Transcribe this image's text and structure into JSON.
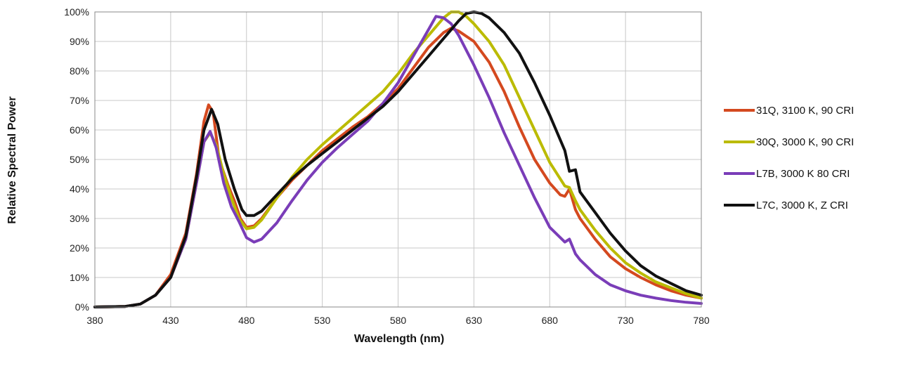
{
  "chart_data": {
    "type": "line",
    "title": "",
    "xlabel": "Wavelength (nm)",
    "ylabel": "Relative Spectral Power",
    "xlim": [
      380,
      780
    ],
    "ylim": [
      0,
      100
    ],
    "x_ticks": [
      "380",
      "430",
      "480",
      "530",
      "580",
      "630",
      "680",
      "730",
      "780"
    ],
    "y_ticks": [
      "0%",
      "10%",
      "20%",
      "30%",
      "40%",
      "50%",
      "60%",
      "70%",
      "80%",
      "90%",
      "100%"
    ],
    "grid": true,
    "legend_position": "right",
    "series": [
      {
        "name": "31Q, 3100 K, 90 CRI",
        "color": "#D4491F",
        "points": [
          [
            380,
            0
          ],
          [
            400,
            0.2
          ],
          [
            410,
            1
          ],
          [
            420,
            4
          ],
          [
            430,
            11
          ],
          [
            440,
            25
          ],
          [
            447,
            45
          ],
          [
            452,
            63
          ],
          [
            455,
            68.5
          ],
          [
            458,
            66
          ],
          [
            462,
            50
          ],
          [
            468,
            41
          ],
          [
            472,
            36
          ],
          [
            476,
            30
          ],
          [
            480,
            27
          ],
          [
            485,
            27.5
          ],
          [
            490,
            30
          ],
          [
            500,
            37
          ],
          [
            510,
            43
          ],
          [
            520,
            48
          ],
          [
            530,
            53
          ],
          [
            540,
            57
          ],
          [
            550,
            61
          ],
          [
            560,
            64.5
          ],
          [
            570,
            69
          ],
          [
            580,
            74
          ],
          [
            590,
            81
          ],
          [
            600,
            88
          ],
          [
            610,
            93
          ],
          [
            615,
            94.5
          ],
          [
            620,
            93.5
          ],
          [
            630,
            90
          ],
          [
            640,
            83
          ],
          [
            650,
            73
          ],
          [
            660,
            61
          ],
          [
            670,
            50
          ],
          [
            680,
            42
          ],
          [
            687,
            38
          ],
          [
            690,
            37.5
          ],
          [
            693,
            40
          ],
          [
            697,
            33
          ],
          [
            700,
            30
          ],
          [
            710,
            23
          ],
          [
            720,
            17
          ],
          [
            730,
            13
          ],
          [
            740,
            10
          ],
          [
            750,
            7.5
          ],
          [
            760,
            5.5
          ],
          [
            770,
            4
          ],
          [
            780,
            3
          ]
        ]
      },
      {
        "name": "30Q, 3000 K, 90 CRI",
        "color": "#BBBB00",
        "points": [
          [
            380,
            0
          ],
          [
            400,
            0.2
          ],
          [
            410,
            1
          ],
          [
            420,
            4
          ],
          [
            430,
            10
          ],
          [
            440,
            23
          ],
          [
            447,
            42
          ],
          [
            452,
            56
          ],
          [
            456,
            59
          ],
          [
            460,
            55
          ],
          [
            465,
            45
          ],
          [
            470,
            37
          ],
          [
            475,
            30
          ],
          [
            480,
            26.5
          ],
          [
            485,
            27
          ],
          [
            490,
            29.5
          ],
          [
            500,
            37
          ],
          [
            510,
            44
          ],
          [
            520,
            50
          ],
          [
            530,
            55
          ],
          [
            540,
            59.5
          ],
          [
            550,
            64
          ],
          [
            560,
            68.5
          ],
          [
            570,
            73
          ],
          [
            580,
            79
          ],
          [
            590,
            86
          ],
          [
            600,
            92
          ],
          [
            610,
            98
          ],
          [
            615,
            100
          ],
          [
            620,
            100
          ],
          [
            625,
            98.5
          ],
          [
            630,
            96
          ],
          [
            640,
            90
          ],
          [
            650,
            82
          ],
          [
            660,
            71
          ],
          [
            670,
            60
          ],
          [
            680,
            49
          ],
          [
            690,
            41
          ],
          [
            693,
            40.5
          ],
          [
            697,
            36
          ],
          [
            700,
            33
          ],
          [
            710,
            26
          ],
          [
            720,
            20
          ],
          [
            730,
            15
          ],
          [
            740,
            11.5
          ],
          [
            750,
            8.5
          ],
          [
            760,
            6.5
          ],
          [
            770,
            4.5
          ],
          [
            780,
            3
          ]
        ]
      },
      {
        "name": "L7B, 3000 K 80 CRI",
        "color": "#7A3DB8",
        "points": [
          [
            380,
            0
          ],
          [
            400,
            0.2
          ],
          [
            410,
            1
          ],
          [
            420,
            4
          ],
          [
            430,
            10
          ],
          [
            440,
            23
          ],
          [
            447,
            42
          ],
          [
            452,
            56
          ],
          [
            456,
            59.5
          ],
          [
            460,
            54
          ],
          [
            465,
            42
          ],
          [
            470,
            34
          ],
          [
            475,
            29
          ],
          [
            480,
            23.5
          ],
          [
            485,
            22
          ],
          [
            490,
            23
          ],
          [
            500,
            28.5
          ],
          [
            510,
            36
          ],
          [
            520,
            43
          ],
          [
            530,
            49
          ],
          [
            540,
            54
          ],
          [
            550,
            58.5
          ],
          [
            560,
            63
          ],
          [
            570,
            69
          ],
          [
            580,
            76
          ],
          [
            590,
            85
          ],
          [
            600,
            94
          ],
          [
            605,
            98.5
          ],
          [
            610,
            98
          ],
          [
            615,
            96
          ],
          [
            620,
            92
          ],
          [
            630,
            82
          ],
          [
            640,
            71
          ],
          [
            650,
            59
          ],
          [
            660,
            48
          ],
          [
            670,
            37
          ],
          [
            680,
            27
          ],
          [
            690,
            22
          ],
          [
            693,
            23
          ],
          [
            697,
            18
          ],
          [
            700,
            16
          ],
          [
            710,
            11
          ],
          [
            720,
            7.5
          ],
          [
            730,
            5.5
          ],
          [
            740,
            4
          ],
          [
            750,
            3
          ],
          [
            760,
            2.2
          ],
          [
            770,
            1.6
          ],
          [
            780,
            1.2
          ]
        ]
      },
      {
        "name": "L7C, 3000 K, Z CRI",
        "color": "#111111",
        "points": [
          [
            380,
            0
          ],
          [
            400,
            0.2
          ],
          [
            410,
            1
          ],
          [
            420,
            4
          ],
          [
            430,
            10
          ],
          [
            440,
            24
          ],
          [
            447,
            44
          ],
          [
            452,
            60
          ],
          [
            457,
            67
          ],
          [
            461,
            62
          ],
          [
            466,
            50
          ],
          [
            472,
            40
          ],
          [
            477,
            33
          ],
          [
            480,
            31
          ],
          [
            485,
            31
          ],
          [
            490,
            32.5
          ],
          [
            500,
            38
          ],
          [
            510,
            43.5
          ],
          [
            520,
            48
          ],
          [
            530,
            52
          ],
          [
            540,
            56
          ],
          [
            550,
            60
          ],
          [
            560,
            64
          ],
          [
            570,
            68
          ],
          [
            580,
            73
          ],
          [
            590,
            79
          ],
          [
            600,
            85
          ],
          [
            610,
            91
          ],
          [
            620,
            97
          ],
          [
            625,
            99.5
          ],
          [
            630,
            100
          ],
          [
            635,
            99.5
          ],
          [
            640,
            98
          ],
          [
            650,
            93
          ],
          [
            660,
            86
          ],
          [
            670,
            76
          ],
          [
            680,
            65
          ],
          [
            690,
            53
          ],
          [
            693,
            46
          ],
          [
            697,
            46.5
          ],
          [
            700,
            39
          ],
          [
            710,
            32
          ],
          [
            720,
            25
          ],
          [
            730,
            19
          ],
          [
            740,
            14
          ],
          [
            750,
            10.5
          ],
          [
            760,
            8
          ],
          [
            770,
            5.5
          ],
          [
            780,
            4
          ]
        ]
      }
    ]
  }
}
